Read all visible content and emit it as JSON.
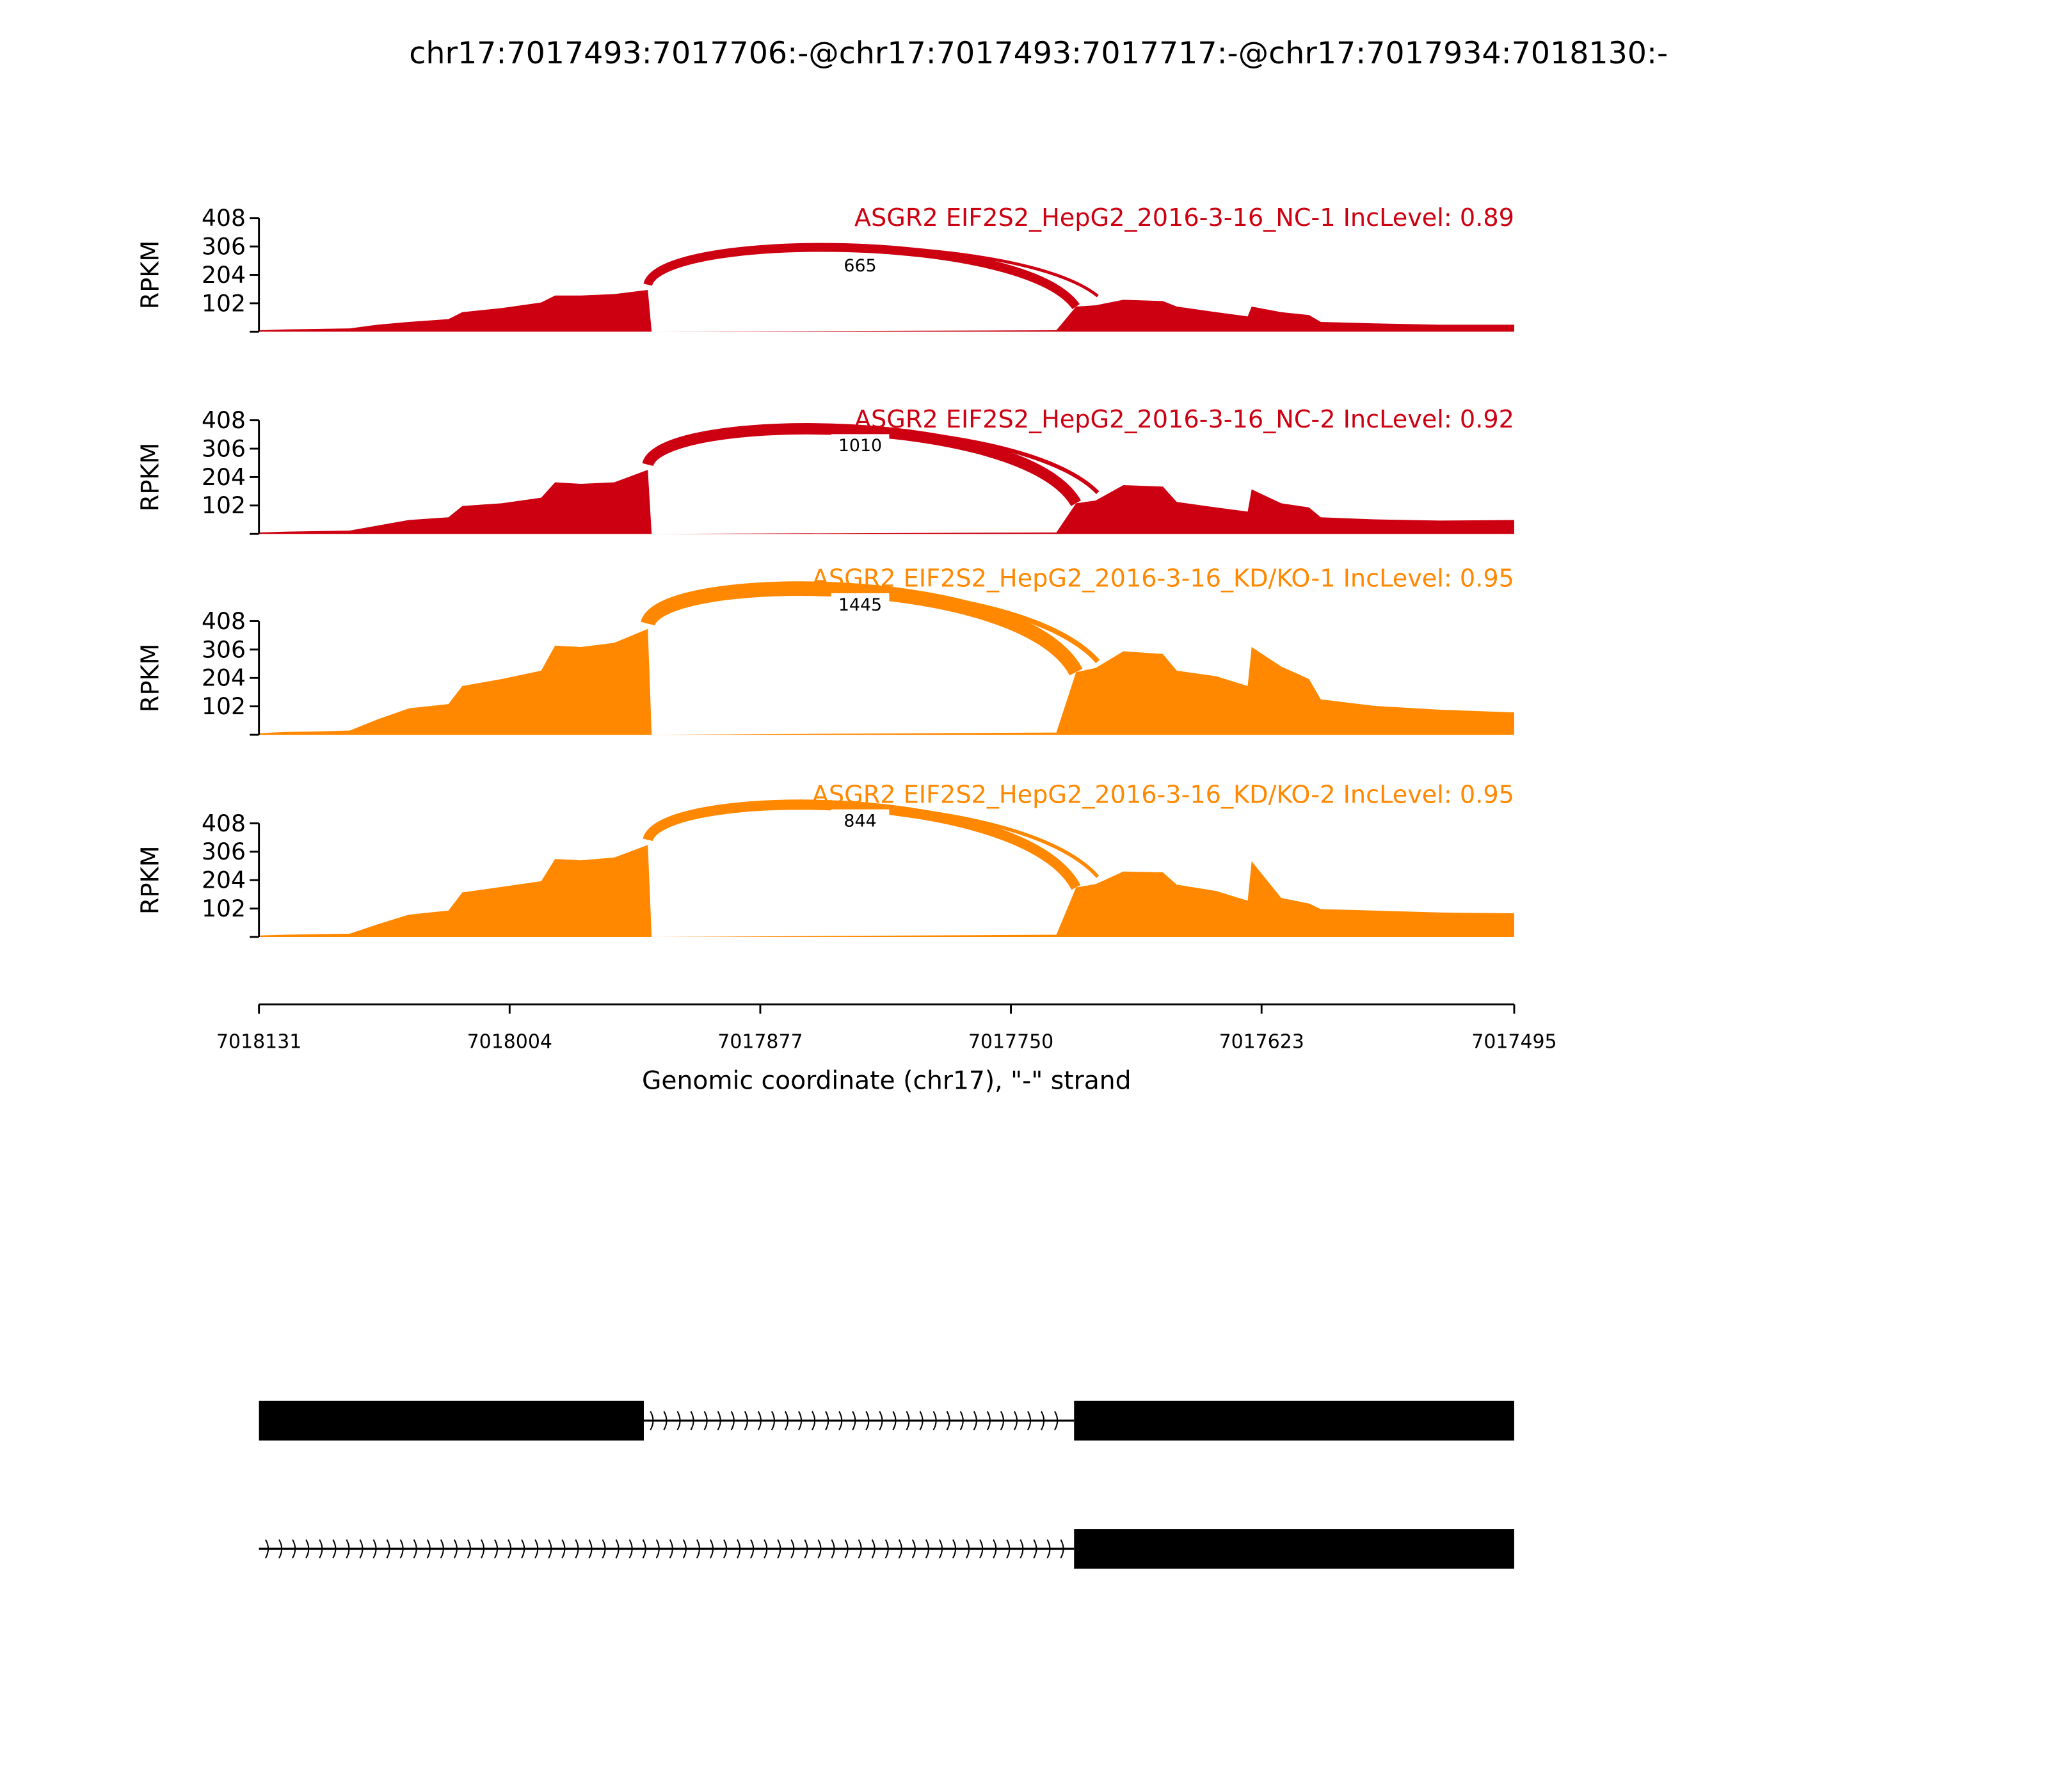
{
  "chart_data": {
    "type": "area",
    "title": "chr17:7017493:7017706:-@chr17:7017493:7017717:-@chr17:7017934:7018130:-",
    "xlabel": "Genomic coordinate (chr17), \"-\" strand",
    "ylabel": "RPKM",
    "xlim": [
      7018131,
      7017495
    ],
    "ylim": [
      0,
      408
    ],
    "yticks": [
      "102",
      "204",
      "306",
      "408"
    ],
    "ytick_values": [
      0,
      102,
      204,
      306,
      408
    ],
    "xticks": [
      "7018131",
      "7018004",
      "7017877",
      "7017750",
      "7017623",
      "7017495"
    ],
    "xtick_values": [
      7018131,
      7018004,
      7017877,
      7017750,
      7017623,
      7017495
    ],
    "coverage_coords": [
      7018131,
      7018118,
      7018102,
      7018085,
      7018071,
      7018055,
      7018035,
      7018028,
      7018008,
      7017988,
      7017981,
      7017968,
      7017951,
      7017934,
      7017932,
      7017727,
      7017717,
      7017707,
      7017693,
      7017673,
      7017666,
      7017646,
      7017630,
      7017628,
      7017613,
      7017599,
      7017593,
      7017566,
      7017533,
      7017495
    ],
    "series": [
      {
        "name": "ASGR2 EIF2S2_HepG2_2016-3-16_NC-1 IncLevel: 0.89",
        "color": "#cc0011",
        "values": [
          5,
          8,
          10,
          12,
          25,
          35,
          45,
          70,
          85,
          105,
          130,
          130,
          135,
          150,
          0,
          5,
          90,
          95,
          115,
          110,
          90,
          70,
          55,
          90,
          70,
          60,
          35,
          30,
          25,
          25
        ],
        "junctions": [
          {
            "start": 7017934,
            "end": 7017717,
            "count": "665"
          },
          {
            "start": 7017934,
            "end": 7017706,
            "count": ""
          }
        ]
      },
      {
        "name": "ASGR2 EIF2S2_HepG2_2016-3-16_NC-2 IncLevel: 0.92",
        "color": "#cc0011",
        "values": [
          5,
          8,
          10,
          12,
          30,
          50,
          60,
          100,
          110,
          130,
          185,
          180,
          185,
          230,
          0,
          5,
          110,
          120,
          175,
          170,
          115,
          95,
          80,
          160,
          110,
          95,
          60,
          52,
          48,
          50
        ],
        "junctions": [
          {
            "start": 7017934,
            "end": 7017717,
            "count": "1010"
          },
          {
            "start": 7017934,
            "end": 7017706,
            "count": ""
          }
        ]
      },
      {
        "name": "ASGR2 EIF2S2_HepG2_2016-3-16_KD/KO-1 IncLevel: 0.95",
        "color": "#ff8800",
        "values": [
          5,
          10,
          12,
          15,
          55,
          95,
          110,
          175,
          200,
          230,
          320,
          315,
          330,
          380,
          0,
          8,
          225,
          240,
          300,
          290,
          230,
          210,
          175,
          315,
          245,
          200,
          127,
          104,
          90,
          80
        ],
        "junctions": [
          {
            "start": 7017934,
            "end": 7017717,
            "count": "1445"
          },
          {
            "start": 7017934,
            "end": 7017706,
            "count": ""
          }
        ]
      },
      {
        "name": "ASGR2 EIF2S2_HepG2_2016-3-16_KD/KO-2 IncLevel: 0.95",
        "color": "#ff8800",
        "values": [
          5,
          8,
          10,
          12,
          45,
          80,
          95,
          160,
          180,
          200,
          280,
          275,
          285,
          330,
          0,
          8,
          178,
          190,
          235,
          232,
          188,
          165,
          130,
          272,
          140,
          120,
          100,
          95,
          88,
          85
        ],
        "junctions": [
          {
            "start": 7017934,
            "end": 7017717,
            "count": "844"
          },
          {
            "start": 7017934,
            "end": 7017706,
            "count": ""
          }
        ]
      }
    ],
    "isoforms": [
      {
        "exons": [
          [
            7018131,
            7017936
          ],
          [
            7017718,
            7017495
          ]
        ],
        "intron_start": 7017936
      },
      {
        "exons": [
          [
            7017718,
            7017495
          ]
        ],
        "intron_start": 7018131
      }
    ],
    "legend": "none",
    "grid": false
  }
}
